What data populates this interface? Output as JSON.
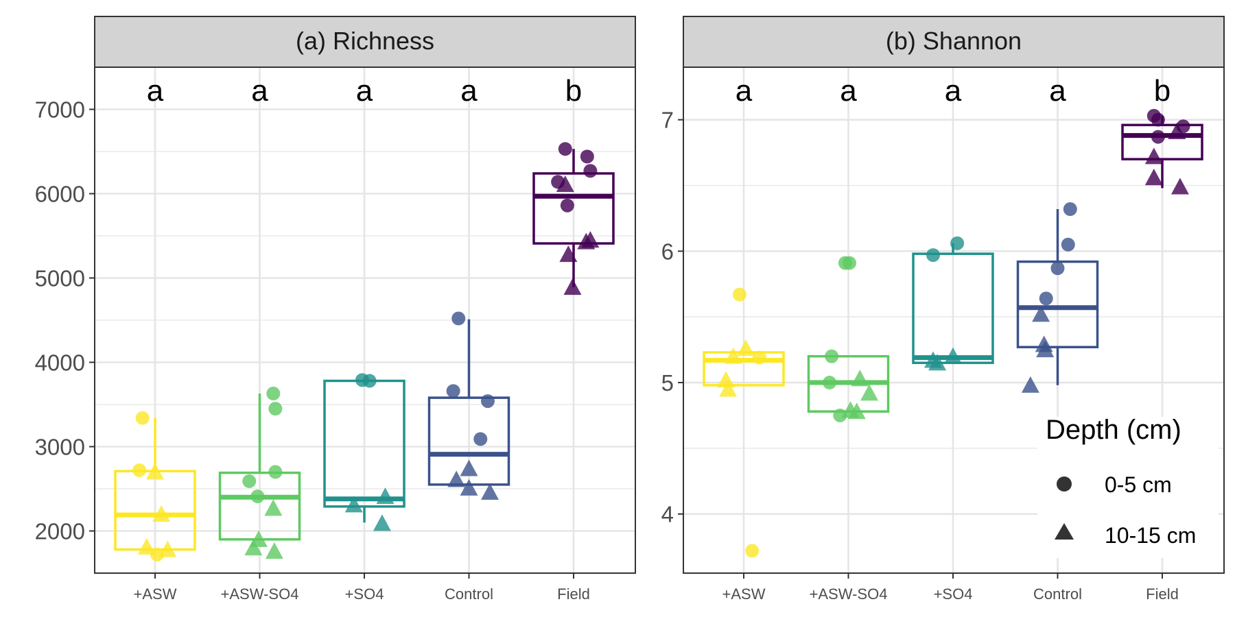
{
  "figure_type": "faceted box plots with jittered points",
  "colors": {
    "+ASW": "#fde725",
    "+ASW-SO4": "#5ec962",
    "+SO4": "#21918c",
    "Control": "#3b528b",
    "Field": "#440154",
    "strip_background": "#d3d3d3",
    "grid": "#e5e5e5",
    "legend_symbol": "#333333"
  },
  "legend": {
    "title": "Depth (cm)",
    "placement": "bottom-right inside panel b",
    "items": [
      {
        "label": "0-5 cm",
        "shape": "circle"
      },
      {
        "label": "10-15 cm",
        "shape": "triangle"
      }
    ]
  },
  "chart_data": [
    {
      "type": "box",
      "title": "(a) Richness",
      "categories": [
        "+ASW",
        "+ASW-SO4",
        "+SO4",
        "Control",
        "Field"
      ],
      "ylim": [
        1500,
        7500
      ],
      "yticks": [
        2000,
        3000,
        4000,
        5000,
        6000,
        7000
      ],
      "grid": true,
      "letters": [
        "a",
        "a",
        "a",
        "a",
        "b"
      ],
      "boxes": [
        {
          "q1": 1780,
          "median": 2190,
          "q3": 2710,
          "whisker_low": 1780,
          "whisker_high": 3340
        },
        {
          "q1": 1900,
          "median": 2400,
          "q3": 2690,
          "whisker_low": 1900,
          "whisker_high": 3630
        },
        {
          "q1": 2290,
          "median": 2380,
          "q3": 3780,
          "whisker_low": 2100,
          "whisker_high": 3780
        },
        {
          "q1": 2550,
          "median": 2910,
          "q3": 3580,
          "whisker_low": 2550,
          "whisker_high": 4510
        },
        {
          "q1": 5410,
          "median": 5970,
          "q3": 6240,
          "whisker_low": 4890,
          "whisker_high": 6530
        }
      ],
      "points": [
        {
          "category": "+ASW",
          "depth": "0-5 cm",
          "values": [
            3340,
            2720,
            1720
          ],
          "offsets": [
            -0.12,
            -0.15,
            0.02
          ]
        },
        {
          "category": "+ASW",
          "depth": "10-15 cm",
          "values": [
            2700,
            2200,
            1810,
            1780
          ],
          "offsets": [
            0.0,
            0.06,
            -0.08,
            0.12
          ]
        },
        {
          "category": "+ASW-SO4",
          "depth": "0-5 cm",
          "values": [
            3630,
            3450,
            2700,
            2590,
            2410
          ],
          "offsets": [
            0.13,
            0.15,
            0.15,
            -0.1,
            -0.02
          ]
        },
        {
          "category": "+ASW-SO4",
          "depth": "10-15 cm",
          "values": [
            2270,
            1900,
            1800,
            1760
          ],
          "offsets": [
            0.13,
            -0.01,
            -0.06,
            0.14
          ]
        },
        {
          "category": "+SO4",
          "depth": "0-5 cm",
          "values": [
            3790,
            3780
          ],
          "offsets": [
            -0.02,
            0.05
          ]
        },
        {
          "category": "+SO4",
          "depth": "10-15 cm",
          "values": [
            2410,
            2310,
            2090
          ],
          "offsets": [
            0.2,
            -0.1,
            0.17
          ]
        },
        {
          "category": "Control",
          "depth": "0-5 cm",
          "values": [
            4520,
            3660,
            3540,
            3090
          ],
          "offsets": [
            -0.1,
            -0.15,
            0.18,
            0.11
          ]
        },
        {
          "category": "Control",
          "depth": "10-15 cm",
          "values": [
            2740,
            2610,
            2510,
            2460
          ],
          "offsets": [
            0.0,
            -0.12,
            0.0,
            0.2
          ]
        },
        {
          "category": "Field",
          "depth": "0-5 cm",
          "values": [
            6530,
            6440,
            6270,
            6140,
            5860
          ],
          "offsets": [
            -0.08,
            0.13,
            0.16,
            -0.15,
            -0.06
          ]
        },
        {
          "category": "Field",
          "depth": "10-15 cm",
          "values": [
            6110,
            5450,
            5430,
            5280,
            4890
          ],
          "offsets": [
            -0.08,
            0.16,
            0.12,
            -0.05,
            -0.01
          ]
        }
      ]
    },
    {
      "type": "box",
      "title": "(b) Shannon",
      "categories": [
        "+ASW",
        "+ASW-SO4",
        "+SO4",
        "Control",
        "Field"
      ],
      "ylim": [
        3.55,
        7.4
      ],
      "yticks": [
        4,
        5,
        6,
        7
      ],
      "grid": true,
      "letters": [
        "a",
        "a",
        "a",
        "a",
        "b"
      ],
      "boxes": [
        {
          "q1": 4.98,
          "median": 5.17,
          "q3": 5.23,
          "whisker_low": 4.98,
          "whisker_high": 5.23
        },
        {
          "q1": 4.78,
          "median": 5.0,
          "q3": 5.2,
          "whisker_low": 4.78,
          "whisker_high": 5.2
        },
        {
          "q1": 5.15,
          "median": 5.19,
          "q3": 5.98,
          "whisker_low": 5.15,
          "whisker_high": 6.06
        },
        {
          "q1": 5.27,
          "median": 5.57,
          "q3": 5.92,
          "whisker_low": 4.98,
          "whisker_high": 6.32
        },
        {
          "q1": 6.7,
          "median": 6.88,
          "q3": 6.96,
          "whisker_low": 6.48,
          "whisker_high": 7.03
        }
      ],
      "points": [
        {
          "category": "+ASW",
          "depth": "0-5 cm",
          "values": [
            5.67,
            5.19,
            3.72
          ],
          "offsets": [
            -0.04,
            0.15,
            0.08
          ]
        },
        {
          "category": "+ASW",
          "depth": "10-15 cm",
          "values": [
            5.26,
            5.2,
            5.02,
            4.95
          ],
          "offsets": [
            0.02,
            -0.1,
            -0.17,
            -0.15
          ]
        },
        {
          "category": "+ASW-SO4",
          "depth": "0-5 cm",
          "values": [
            5.91,
            5.91,
            5.2,
            5.0,
            4.75
          ],
          "offsets": [
            -0.03,
            0.01,
            -0.16,
            -0.18,
            -0.08
          ]
        },
        {
          "category": "+ASW-SO4",
          "depth": "10-15 cm",
          "values": [
            5.03,
            4.92,
            4.79,
            4.78
          ],
          "offsets": [
            0.11,
            0.2,
            0.02,
            0.08
          ]
        },
        {
          "category": "+SO4",
          "depth": "0-5 cm",
          "values": [
            6.06,
            5.97
          ],
          "offsets": [
            0.04,
            -0.19
          ]
        },
        {
          "category": "+SO4",
          "depth": "10-15 cm",
          "values": [
            5.2,
            5.17,
            5.15
          ],
          "offsets": [
            0.0,
            -0.19,
            -0.15
          ]
        },
        {
          "category": "Control",
          "depth": "0-5 cm",
          "values": [
            6.32,
            6.05,
            5.87,
            5.64
          ],
          "offsets": [
            0.12,
            0.1,
            0.0,
            -0.11
          ]
        },
        {
          "category": "Control",
          "depth": "10-15 cm",
          "values": [
            5.52,
            5.29,
            5.25,
            4.98
          ],
          "offsets": [
            -0.16,
            -0.13,
            -0.12,
            -0.26
          ]
        },
        {
          "category": "Field",
          "depth": "0-5 cm",
          "values": [
            7.03,
            7.0,
            6.95,
            6.87
          ],
          "offsets": [
            -0.08,
            -0.04,
            0.2,
            -0.04
          ]
        },
        {
          "category": "Field",
          "depth": "10-15 cm",
          "values": [
            6.91,
            6.72,
            6.56,
            6.49
          ],
          "offsets": [
            0.14,
            -0.08,
            -0.08,
            0.17
          ]
        }
      ]
    }
  ]
}
